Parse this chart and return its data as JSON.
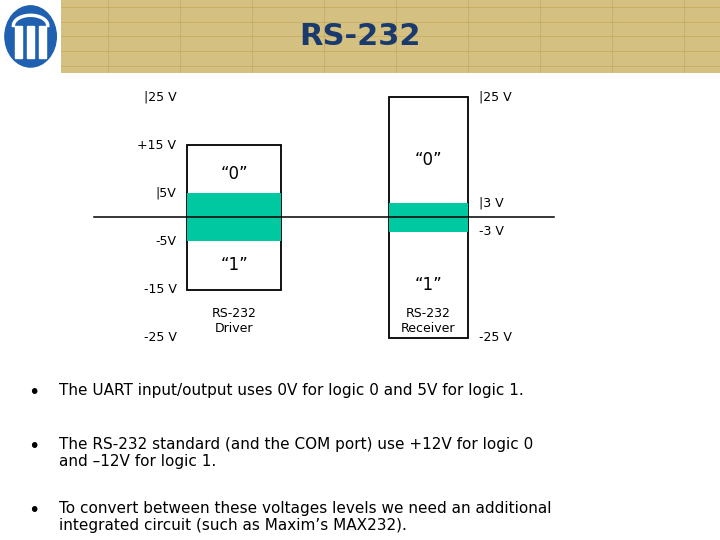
{
  "title": "RS-232",
  "title_fontsize": 22,
  "title_color": "#1a3a6e",
  "header_bg": "#D4C080",
  "page_bg": "#FFFFFF",
  "teal_color": "#00C8A0",
  "driver_labels_left": [
    {
      "text": "|25 V",
      "y": 25
    },
    {
      "text": "+15 V",
      "y": 15
    },
    {
      "text": "|5V",
      "y": 5
    },
    {
      "text": "-5V",
      "y": -5
    },
    {
      "text": "-15 V",
      "y": -15
    },
    {
      "text": "-25 V",
      "y": -25
    }
  ],
  "receiver_labels_right": [
    {
      "text": "|25 V",
      "y": 25
    },
    {
      "text": "|3 V",
      "y": 3
    },
    {
      "text": "-3 V",
      "y": -3
    },
    {
      "text": "-25 V",
      "y": -25
    }
  ],
  "driver_text_0": "“0”",
  "driver_text_1": "“1”",
  "receiver_text_0": "“0”",
  "receiver_text_1": "“1”",
  "driver_caption": [
    "RS-232",
    "Driver"
  ],
  "receiver_caption": [
    "RS-232",
    "Receiver"
  ],
  "bullet_points": [
    "The UART input/output uses 0V for logic 0 and 5V for logic 1.",
    "The RS-232 standard (and the COM port) use +12V for logic 0\nand –12V for logic 1.",
    "To convert between these voltages levels we need an additional\nintegrated circuit (such as Maxim’s MAX232)."
  ],
  "bullet_fontsize": 11,
  "caption_fontsize": 9,
  "label_fontsize": 9,
  "inner_label_fontsize": 12
}
